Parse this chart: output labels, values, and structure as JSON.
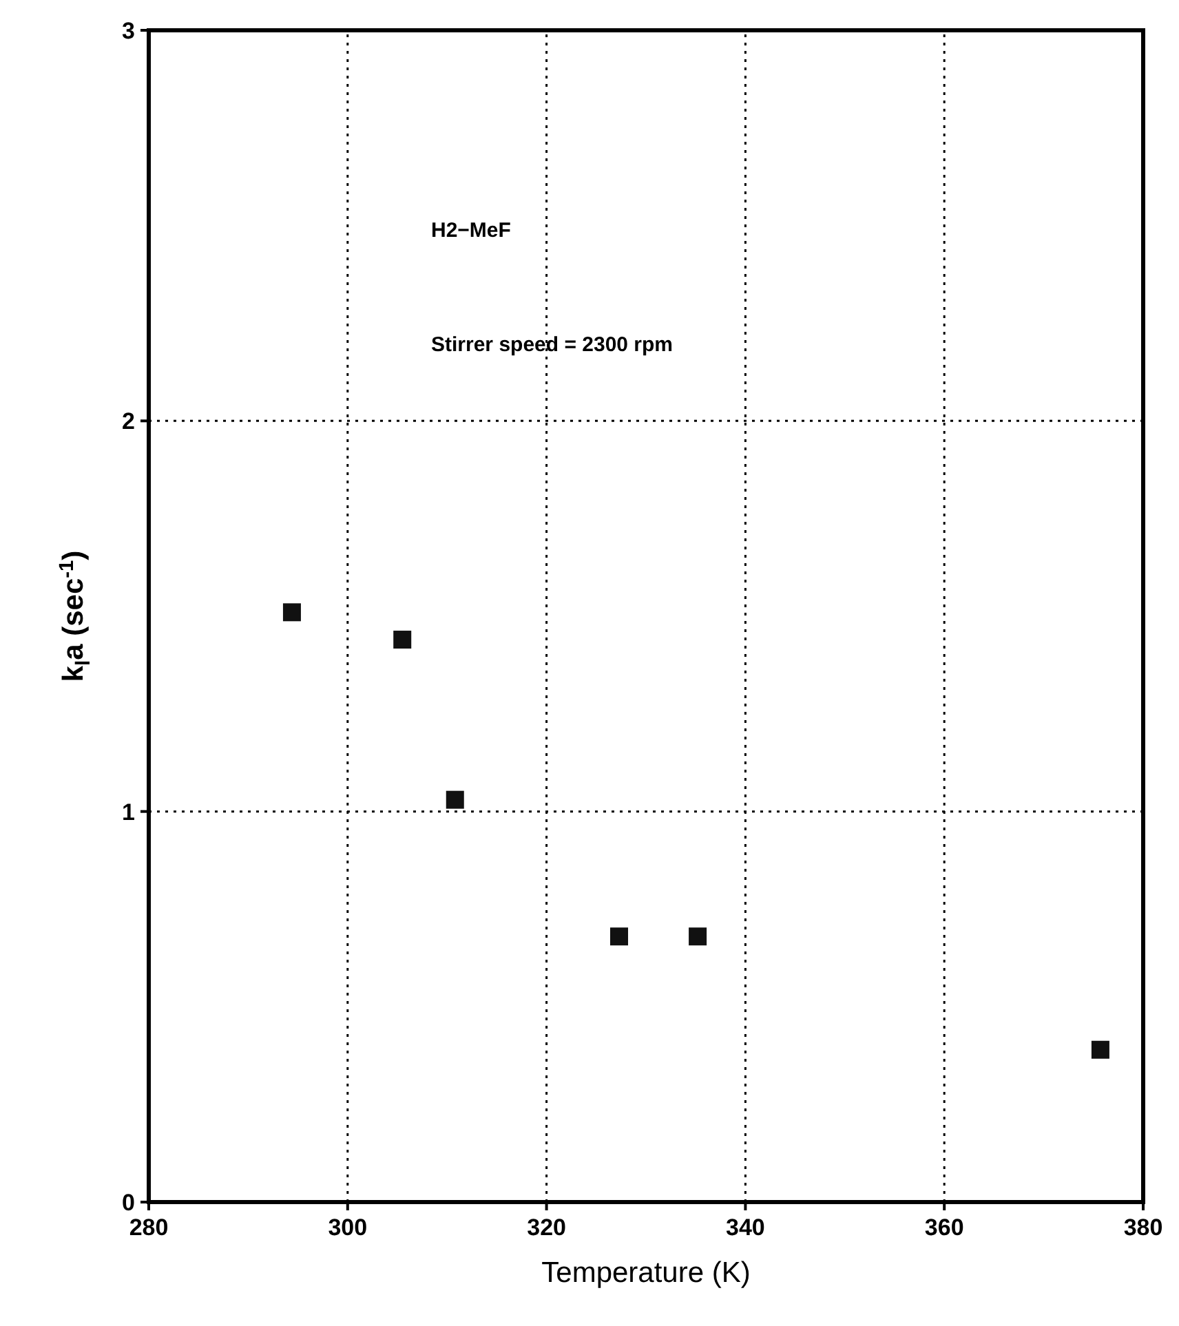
{
  "chart_data": {
    "type": "scatter",
    "xlabel": "Temperature (K)",
    "ylabel": "k$_{l}$a (sec$^{-1}$)",
    "annotations": [
      "H2−MeF",
      "Stirrer speed = 2300 rpm"
    ],
    "x": [
      294.4,
      305.5,
      310.8,
      327.3,
      335.2,
      375.7
    ],
    "values": [
      1.51,
      1.44,
      1.03,
      0.68,
      0.68,
      0.39
    ],
    "color": "#111111",
    "marker": "square",
    "xlim": [
      280,
      380
    ],
    "xticks": [
      280,
      300,
      320,
      340,
      360,
      380
    ],
    "ylim": [
      0,
      3
    ],
    "yticks": [
      0,
      1,
      2,
      3
    ],
    "grid": true
  }
}
